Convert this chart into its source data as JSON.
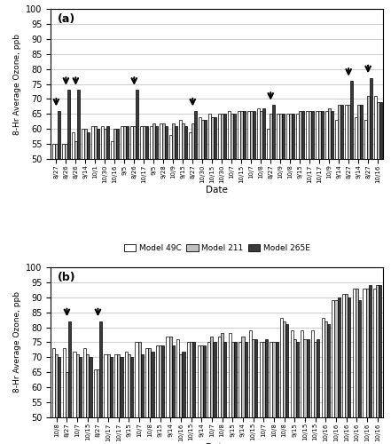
{
  "panel_a": {
    "label": "(a)",
    "dates": [
      "8/27",
      "8/26",
      "8/26",
      "9/14",
      "10/1",
      "10/30",
      "10/16",
      "9/5",
      "8/26",
      "10/17",
      "9/5",
      "9/28",
      "10/9",
      "9/15",
      "8/27",
      "10/30",
      "10/15",
      "10/30",
      "10/7",
      "10/15",
      "10/7",
      "10/8",
      "8/27",
      "10/9",
      "10/8",
      "9/15",
      "10/17",
      "10/17",
      "10/9",
      "9/14",
      "8/27",
      "9/14",
      "8/27",
      "10/16"
    ],
    "model_49c": [
      55,
      55,
      59,
      60,
      61,
      61,
      56,
      61,
      61,
      61,
      61,
      62,
      58,
      63,
      59,
      64,
      65,
      65,
      66,
      66,
      66,
      67,
      60,
      65,
      65,
      65,
      66,
      66,
      66,
      63,
      68,
      64,
      63,
      71
    ],
    "model_211": [
      55,
      55,
      56,
      60,
      61,
      60,
      60,
      61,
      61,
      61,
      62,
      62,
      62,
      62,
      62,
      63,
      64,
      65,
      65,
      66,
      66,
      66,
      65,
      65,
      65,
      66,
      66,
      66,
      67,
      68,
      68,
      68,
      71,
      69
    ],
    "model_265e": [
      66,
      73,
      73,
      59,
      60,
      61,
      60,
      61,
      73,
      61,
      61,
      61,
      61,
      61,
      66,
      63,
      64,
      65,
      65,
      66,
      66,
      67,
      68,
      65,
      65,
      66,
      66,
      66,
      66,
      68,
      76,
      68,
      77,
      69
    ],
    "arrows": [
      0,
      1,
      2,
      8,
      14,
      22,
      30,
      32
    ],
    "ylim": [
      50,
      100
    ],
    "yticks": [
      50,
      55,
      60,
      65,
      70,
      75,
      80,
      85,
      90,
      95,
      100
    ]
  },
  "panel_b": {
    "label": "(b)",
    "dates": [
      "10/8",
      "8/27",
      "10/7",
      "10/15",
      "8/27",
      "10/17",
      "10/17",
      "9/15",
      "10/7",
      "10/8",
      "9/15",
      "9/14",
      "10/16",
      "10/15",
      "9/14",
      "10/7",
      "10/8",
      "9/15",
      "9/14",
      "10/15",
      "10/7",
      "10/8",
      "10/8",
      "9/15",
      "10/15",
      "10/15",
      "10/16",
      "10/16",
      "10/16",
      "10/16",
      "10/16",
      "10/16"
    ],
    "model_49c": [
      73,
      73,
      72,
      73,
      66,
      71,
      71,
      72,
      75,
      73,
      74,
      77,
      76,
      75,
      74,
      75,
      77,
      78,
      75,
      79,
      75,
      75,
      83,
      79,
      79,
      79,
      83,
      89,
      91,
      93,
      93,
      93
    ],
    "model_211": [
      71,
      65,
      71,
      71,
      66,
      71,
      71,
      71,
      75,
      73,
      74,
      77,
      71,
      75,
      74,
      77,
      78,
      75,
      77,
      76,
      75,
      75,
      82,
      76,
      76,
      75,
      82,
      89,
      91,
      93,
      93,
      94
    ],
    "model_265e": [
      70,
      82,
      70,
      70,
      82,
      70,
      70,
      70,
      71,
      72,
      74,
      74,
      72,
      75,
      74,
      75,
      75,
      75,
      75,
      76,
      76,
      75,
      81,
      75,
      76,
      76,
      81,
      90,
      90,
      89,
      94,
      94
    ],
    "arrows": [
      1,
      4
    ],
    "ylim": [
      50,
      100
    ],
    "yticks": [
      50,
      55,
      60,
      65,
      70,
      75,
      80,
      85,
      90,
      95,
      100
    ]
  },
  "colors": {
    "model_49c": "#ffffff",
    "model_211": "#c0c0c0",
    "model_265e": "#3a3a3a",
    "bar_edge": "#000000"
  },
  "ylabel": "8-Hr Average Ozone, ppb",
  "xlabel": "Date",
  "legend_labels": [
    "Model 49C",
    "Model 211",
    "Model 265E"
  ]
}
